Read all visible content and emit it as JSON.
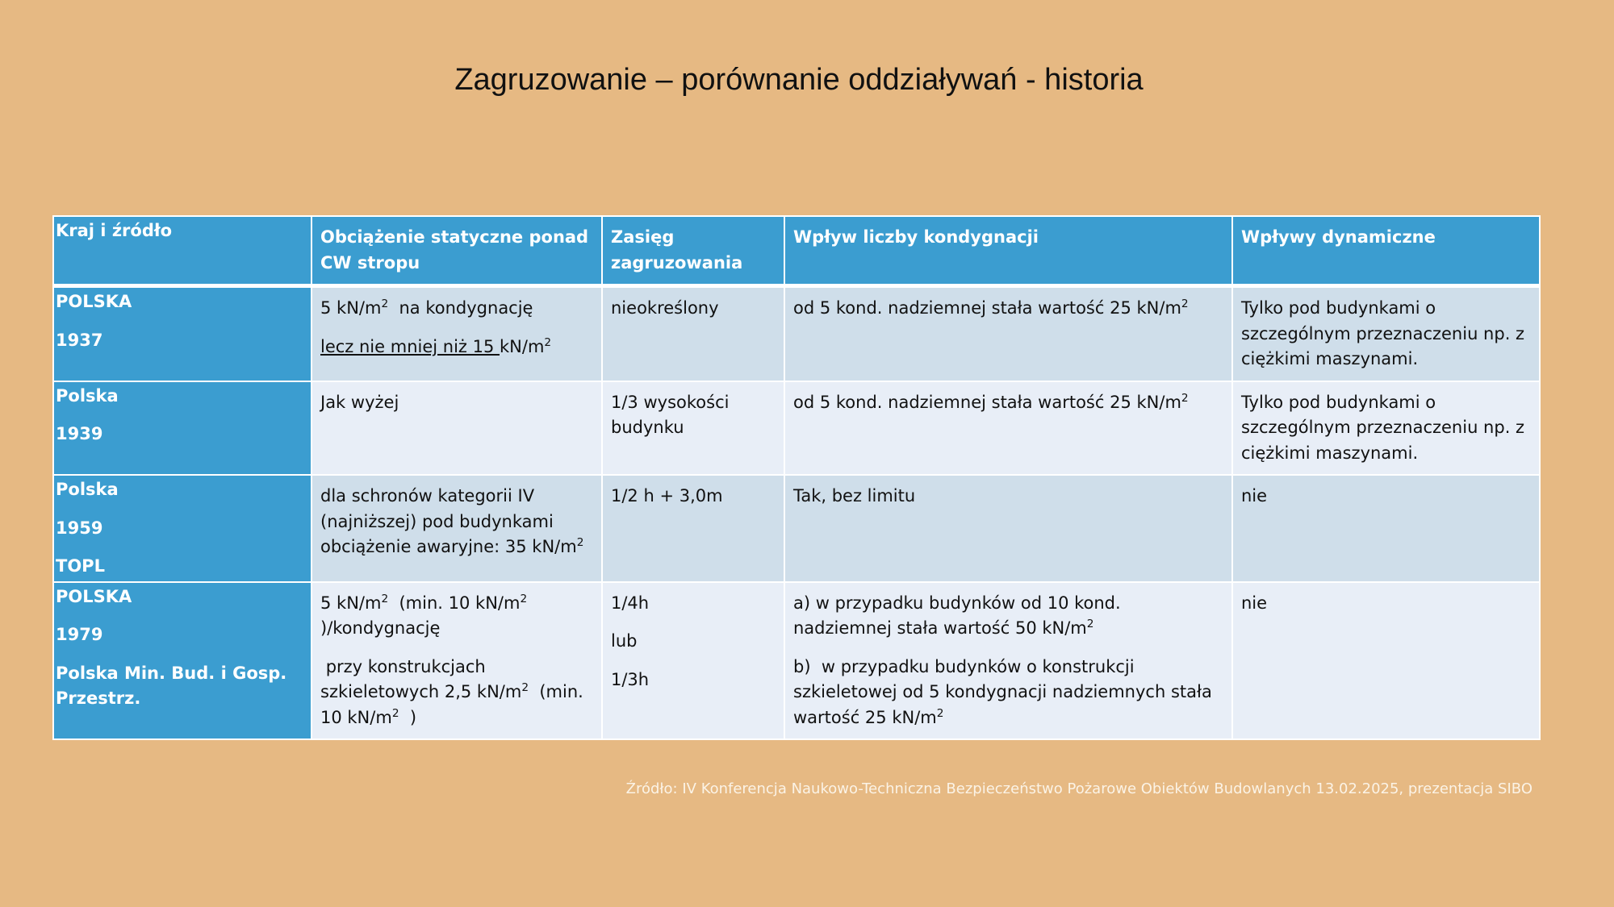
{
  "header": {
    "title": "Zagruzowanie – porównanie oddziaływań - historia"
  },
  "table": {
    "header": [
      "Kraj i źródło",
      "Obciążenie statyczne ponad CW stropu",
      "Zasięg zagruzowania",
      "Wpływ liczby kondygnacji",
      "Wpływy dynamiczne"
    ],
    "rows": [
      [
        [
          [
            "POLSKA"
          ],
          [
            "1937"
          ]
        ],
        [
          [
            "5 kN/m",
            {
              "sup": "2"
            },
            "  na kondygnację"
          ],
          [
            {
              "underline": "lecz nie mniej niż 15 "
            },
            "kN/m",
            {
              "sup": "2"
            }
          ]
        ],
        [
          [
            "nieokreślony"
          ]
        ],
        [
          [
            "od 5 kond. nadziemnej stała wartość 25 kN/m",
            {
              "sup": "2"
            }
          ]
        ],
        [
          [
            "Tylko pod budynkami o szczególnym przeznaczeniu np. z ciężkimi maszynami."
          ]
        ]
      ],
      [
        [
          [
            "Polska"
          ],
          [
            "1939"
          ]
        ],
        [
          [
            "Jak wyżej"
          ]
        ],
        [
          [
            "1/3 wysokości budynku"
          ]
        ],
        [
          [
            "od 5 kond. nadziemnej stała wartość 25 kN/m",
            {
              "sup": "2"
            }
          ]
        ],
        [
          [
            "Tylko pod budynkami o szczególnym przeznaczeniu np. z ciężkimi maszynami."
          ]
        ]
      ],
      [
        [
          [
            "Polska"
          ],
          [
            "1959"
          ],
          [
            "TOPL"
          ]
        ],
        [
          [
            "dla schronów kategorii IV (najniższej) pod budynkami obciążenie awaryjne: 35 kN/m",
            {
              "sup": "2"
            }
          ]
        ],
        [
          [
            "1/2 h + 3,0m"
          ]
        ],
        [
          [
            "Tak, bez limitu"
          ]
        ],
        [
          [
            "nie"
          ]
        ]
      ],
      [
        [
          [
            "POLSKA"
          ],
          [
            "1979"
          ],
          [
            "Polska Min. Bud. i Gosp. Przestrz."
          ]
        ],
        [
          [
            "5 kN/m",
            {
              "sup": "2"
            },
            "  (min. 10 kN/m",
            {
              "sup": "2"
            },
            " )/kondygnację"
          ],
          [
            " przy konstrukcjach szkieletowych 2,5 kN/m",
            {
              "sup": "2"
            },
            "  (min. 10 kN/m",
            {
              "sup": "2"
            },
            "  )"
          ]
        ],
        [
          [
            "1/4h"
          ],
          [
            "lub"
          ],
          [
            "1/3h"
          ]
        ],
        [
          [
            "a) w przypadku budynków od 10 kond. nadziemnej stała wartość 50 kN/m",
            {
              "sup": "2"
            }
          ],
          [
            "b)  w przypadku budynków o konstrukcji szkieletowej od 5 kondygnacji nadziemnych stała wartość 25 kN/m",
            {
              "sup": "2"
            }
          ]
        ],
        [
          [
            "nie"
          ]
        ]
      ]
    ]
  },
  "footer": {
    "source": "Źródło: IV Konferencja Naukowo-Techniczna Bezpieczeństwo Pożarowe Obiektów Budowlanych 13.02.2025, prezentacja SIBO"
  }
}
